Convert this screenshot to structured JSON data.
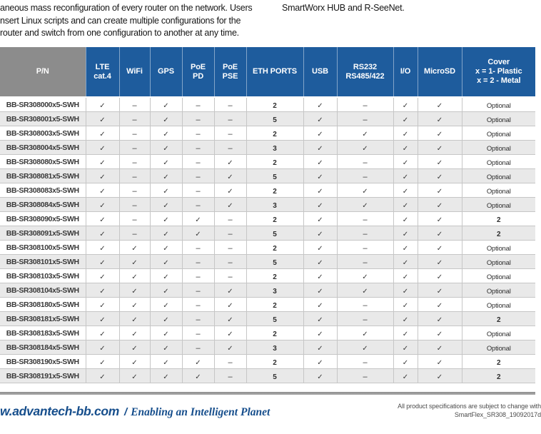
{
  "colors": {
    "header_blue": "#1E5C9D",
    "header_gray": "#8C8C8C",
    "row_alt_gray": "#E9E9E9",
    "footer_blue": "#164E8C",
    "divider_gray": "#9A9A9A"
  },
  "icons": {
    "check": "✓",
    "dash": "–"
  },
  "intro": {
    "left": "aneous mass reconfiguration of every router on the network. Users\nnsert Linux scripts and can create multiple configurations for the\nrouter and switch from one configuration to another at any time.",
    "right": "SmartWorx HUB and R-SeeNet."
  },
  "table": {
    "columns": [
      "P/N",
      "LTE\ncat.4",
      "WiFi",
      "GPS",
      "PoE\nPD",
      "PoE\nPSE",
      "ETH PORTS",
      "USB",
      "RS232\nRS485/422",
      "I/O",
      "MicroSD",
      "Cover\nx = 1- Plastic\nx = 2 - Metal"
    ],
    "rows": [
      {
        "pn": "BB-SR308000x5-SWH",
        "values": [
          "yes",
          "no",
          "yes",
          "no",
          "no",
          "2",
          "yes",
          "no",
          "yes",
          "yes",
          "Optional"
        ]
      },
      {
        "pn": "BB-SR308001x5-SWH",
        "values": [
          "yes",
          "no",
          "yes",
          "no",
          "no",
          "5",
          "yes",
          "no",
          "yes",
          "yes",
          "Optional"
        ]
      },
      {
        "pn": "BB-SR308003x5-SWH",
        "values": [
          "yes",
          "no",
          "yes",
          "no",
          "no",
          "2",
          "yes",
          "yes",
          "yes",
          "yes",
          "Optional"
        ]
      },
      {
        "pn": "BB-SR308004x5-SWH",
        "values": [
          "yes",
          "no",
          "yes",
          "no",
          "no",
          "3",
          "yes",
          "yes",
          "yes",
          "yes",
          "Optional"
        ]
      },
      {
        "pn": "BB-SR308080x5-SWH",
        "values": [
          "yes",
          "no",
          "yes",
          "no",
          "yes",
          "2",
          "yes",
          "no",
          "yes",
          "yes",
          "Optional"
        ]
      },
      {
        "pn": "BB-SR308081x5-SWH",
        "values": [
          "yes",
          "no",
          "yes",
          "no",
          "yes",
          "5",
          "yes",
          "no",
          "yes",
          "yes",
          "Optional"
        ]
      },
      {
        "pn": "BB-SR308083x5-SWH",
        "values": [
          "yes",
          "no",
          "yes",
          "no",
          "yes",
          "2",
          "yes",
          "yes",
          "yes",
          "yes",
          "Optional"
        ]
      },
      {
        "pn": "BB-SR308084x5-SWH",
        "values": [
          "yes",
          "no",
          "yes",
          "no",
          "yes",
          "3",
          "yes",
          "yes",
          "yes",
          "yes",
          "Optional"
        ]
      },
      {
        "pn": "BB-SR308090x5-SWH",
        "values": [
          "yes",
          "no",
          "yes",
          "yes",
          "no",
          "2",
          "yes",
          "no",
          "yes",
          "yes",
          "2"
        ]
      },
      {
        "pn": "BB-SR308091x5-SWH",
        "values": [
          "yes",
          "no",
          "yes",
          "yes",
          "no",
          "5",
          "yes",
          "no",
          "yes",
          "yes",
          "2"
        ]
      },
      {
        "pn": "BB-SR308100x5-SWH",
        "values": [
          "yes",
          "yes",
          "yes",
          "no",
          "no",
          "2",
          "yes",
          "no",
          "yes",
          "yes",
          "Optional"
        ]
      },
      {
        "pn": "BB-SR308101x5-SWH",
        "values": [
          "yes",
          "yes",
          "yes",
          "no",
          "no",
          "5",
          "yes",
          "no",
          "yes",
          "yes",
          "Optional"
        ]
      },
      {
        "pn": "BB-SR308103x5-SWH",
        "values": [
          "yes",
          "yes",
          "yes",
          "no",
          "no",
          "2",
          "yes",
          "yes",
          "yes",
          "yes",
          "Optional"
        ]
      },
      {
        "pn": "BB-SR308104x5-SWH",
        "values": [
          "yes",
          "yes",
          "yes",
          "no",
          "yes",
          "3",
          "yes",
          "yes",
          "yes",
          "yes",
          "Optional"
        ]
      },
      {
        "pn": "BB-SR308180x5-SWH",
        "values": [
          "yes",
          "yes",
          "yes",
          "no",
          "yes",
          "2",
          "yes",
          "no",
          "yes",
          "yes",
          "Optional"
        ]
      },
      {
        "pn": "BB-SR308181x5-SWH",
        "values": [
          "yes",
          "yes",
          "yes",
          "no",
          "yes",
          "5",
          "yes",
          "no",
          "yes",
          "yes",
          "2"
        ]
      },
      {
        "pn": "BB-SR308183x5-SWH",
        "values": [
          "yes",
          "yes",
          "yes",
          "no",
          "yes",
          "2",
          "yes",
          "yes",
          "yes",
          "yes",
          "Optional"
        ]
      },
      {
        "pn": "BB-SR308184x5-SWH",
        "values": [
          "yes",
          "yes",
          "yes",
          "no",
          "yes",
          "3",
          "yes",
          "yes",
          "yes",
          "yes",
          "Optional"
        ]
      },
      {
        "pn": "BB-SR308190x5-SWH",
        "values": [
          "yes",
          "yes",
          "yes",
          "yes",
          "no",
          "2",
          "yes",
          "no",
          "yes",
          "yes",
          "2"
        ]
      },
      {
        "pn": "BB-SR308191x5-SWH",
        "values": [
          "yes",
          "yes",
          "yes",
          "yes",
          "no",
          "5",
          "yes",
          "no",
          "yes",
          "yes",
          "2"
        ]
      }
    ]
  },
  "footer": {
    "website": "w.advantech-bb.com",
    "separator": "/",
    "tagline": "Enabling an Intelligent Planet",
    "disclaimer": "All product specifications are subject to change with",
    "doc_id": "SmartFlex_SR308_19092017d"
  }
}
